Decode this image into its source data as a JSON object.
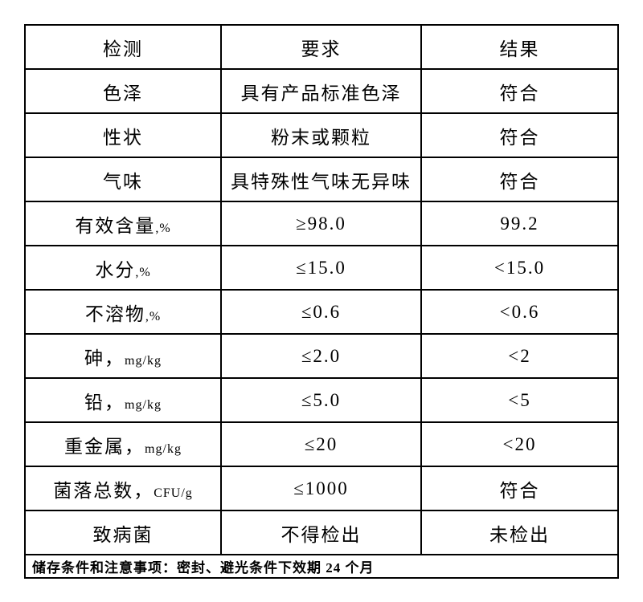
{
  "table": {
    "headers": {
      "test": "检测",
      "requirement": "要求",
      "result": "结果"
    },
    "rows": [
      {
        "name": "色泽",
        "unit": "",
        "requirement": "具有产品标准色泽",
        "result": "符合"
      },
      {
        "name": "性状",
        "unit": "",
        "requirement": "粉末或颗粒",
        "result": "符合"
      },
      {
        "name": "气味",
        "unit": "",
        "requirement": "具特殊性气味无异味",
        "result": "符合"
      },
      {
        "name": "有效含量",
        "unit": ",%",
        "requirement": "≥98.0",
        "result": "99.2"
      },
      {
        "name": "水分",
        "unit": ",%",
        "requirement": "≤15.0",
        "result": "<15.0"
      },
      {
        "name": "不溶物",
        "unit": ",%",
        "requirement": "≤0.6",
        "result": "<0.6"
      },
      {
        "name": "砷，",
        "unit": "mg/kg",
        "requirement": "≤2.0",
        "result": "<2"
      },
      {
        "name": "铅，",
        "unit": "mg/kg",
        "requirement": "≤5.0",
        "result": "<5"
      },
      {
        "name": "重金属，",
        "unit": "mg/kg",
        "requirement": "≤20",
        "result": "<20"
      },
      {
        "name": "菌落总数，",
        "unit": "CFU/g",
        "requirement": "≤1000",
        "result": "符合"
      },
      {
        "name": "致病菌",
        "unit": "",
        "requirement": "不得检出",
        "result": "未检出"
      }
    ],
    "footer_note": "储存条件和注意事项：密封、避光条件下效期 24 个月"
  },
  "colors": {
    "background": "#ffffff",
    "border": "#000000",
    "text": "#000000"
  }
}
